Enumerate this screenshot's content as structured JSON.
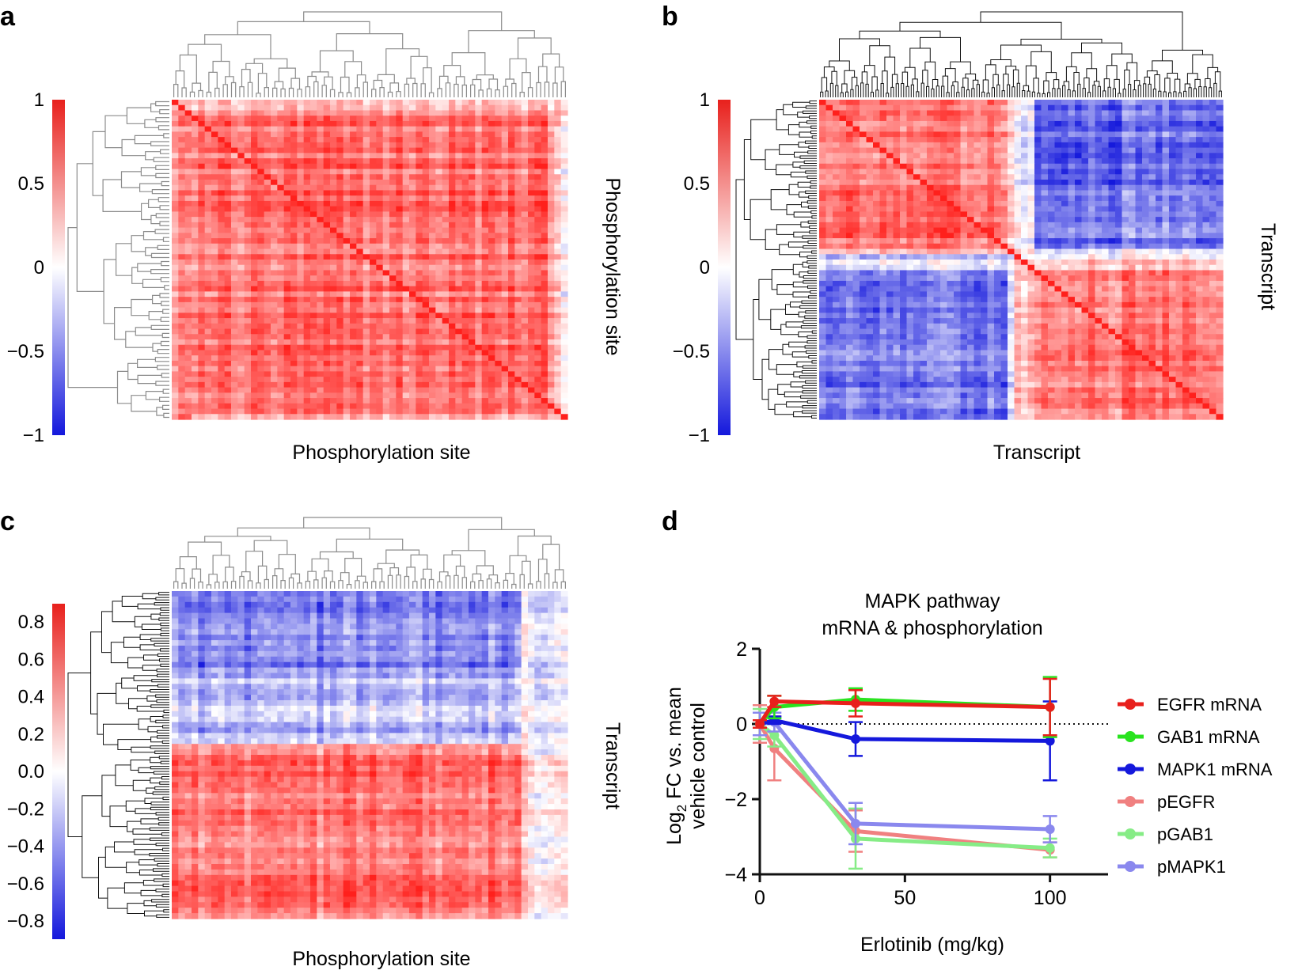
{
  "panels": {
    "a": {
      "letter": "a",
      "xlabel": "Phosphorylation site",
      "ylabel": "Phosphorylation site",
      "colorbar_ticks": [
        "1",
        "0.5",
        "0",
        "−0.5",
        "−1"
      ],
      "colorbar_range": [
        -1,
        1
      ],
      "pattern": "mostly strong positive correlation, diagonal of 1"
    },
    "b": {
      "letter": "b",
      "xlabel": "Transcript",
      "ylabel": "Transcript",
      "colorbar_ticks": [
        "1",
        "0.5",
        "0",
        "−0.5",
        "−1"
      ],
      "colorbar_range": [
        -1,
        1
      ],
      "pattern": "two anti-correlated transcript clusters (2x2 block structure)"
    },
    "c": {
      "letter": "c",
      "xlabel": "Phosphorylation site",
      "ylabel": "Transcript",
      "colorbar_ticks": [
        "0.8",
        "0.6",
        "0.4",
        "0.2",
        "0.0",
        "−0.2",
        "−0.4",
        "−0.6",
        "−0.8"
      ],
      "colorbar_range": [
        -0.9,
        0.9
      ],
      "pattern": "upper transcripts negatively correlated, lower transcripts positively correlated"
    },
    "d": {
      "letter": "d",
      "title_line1": "MAPK pathway",
      "title_line2": "mRNA & phosphorylation"
    }
  },
  "chart_data": {
    "type": "line",
    "title": "MAPK pathway mRNA & phosphorylation",
    "xlabel": "Erlotinib (mg/kg)",
    "ylabel_part1": "Log",
    "ylabel_sub": "2",
    "ylabel_part2": " FC vs. mean",
    "ylabel_line2": "vehicle control",
    "xlim": [
      0,
      120
    ],
    "ylim": [
      -4,
      2
    ],
    "xticks": [
      0,
      50,
      100
    ],
    "yticks": [
      2,
      0,
      -2,
      -4
    ],
    "x": [
      0,
      5,
      33,
      100
    ],
    "reference_line": 0,
    "series": [
      {
        "name": "EGFR mRNA",
        "color": "#e8201c",
        "values": [
          0,
          0.6,
          0.55,
          0.45
        ],
        "err": [
          0.1,
          0.15,
          0.35,
          0.75
        ]
      },
      {
        "name": "GAB1 mRNA",
        "color": "#29e31f",
        "values": [
          0,
          0.45,
          0.65,
          0.45
        ],
        "err": [
          0.1,
          0.3,
          0.3,
          0.8
        ]
      },
      {
        "name": "MAPK1 mRNA",
        "color": "#1418dc",
        "values": [
          0,
          0.1,
          -0.4,
          -0.45
        ],
        "err": [
          0.1,
          0.1,
          0.45,
          1.05
        ]
      },
      {
        "name": "pEGFR",
        "color": "#f08080",
        "values": [
          0,
          -0.65,
          -2.85,
          -3.35
        ],
        "err": [
          0.5,
          0.85,
          0.55,
          0.2
        ]
      },
      {
        "name": "pGAB1",
        "color": "#86ec86",
        "values": [
          0,
          -0.3,
          -3.05,
          -3.3
        ],
        "err": [
          0.4,
          0.3,
          0.8,
          0.25
        ]
      },
      {
        "name": "pMAPK1",
        "color": "#8a88ee",
        "values": [
          0,
          0.05,
          -2.65,
          -2.8
        ],
        "err": [
          0.3,
          0.25,
          0.55,
          0.35
        ]
      }
    ]
  }
}
